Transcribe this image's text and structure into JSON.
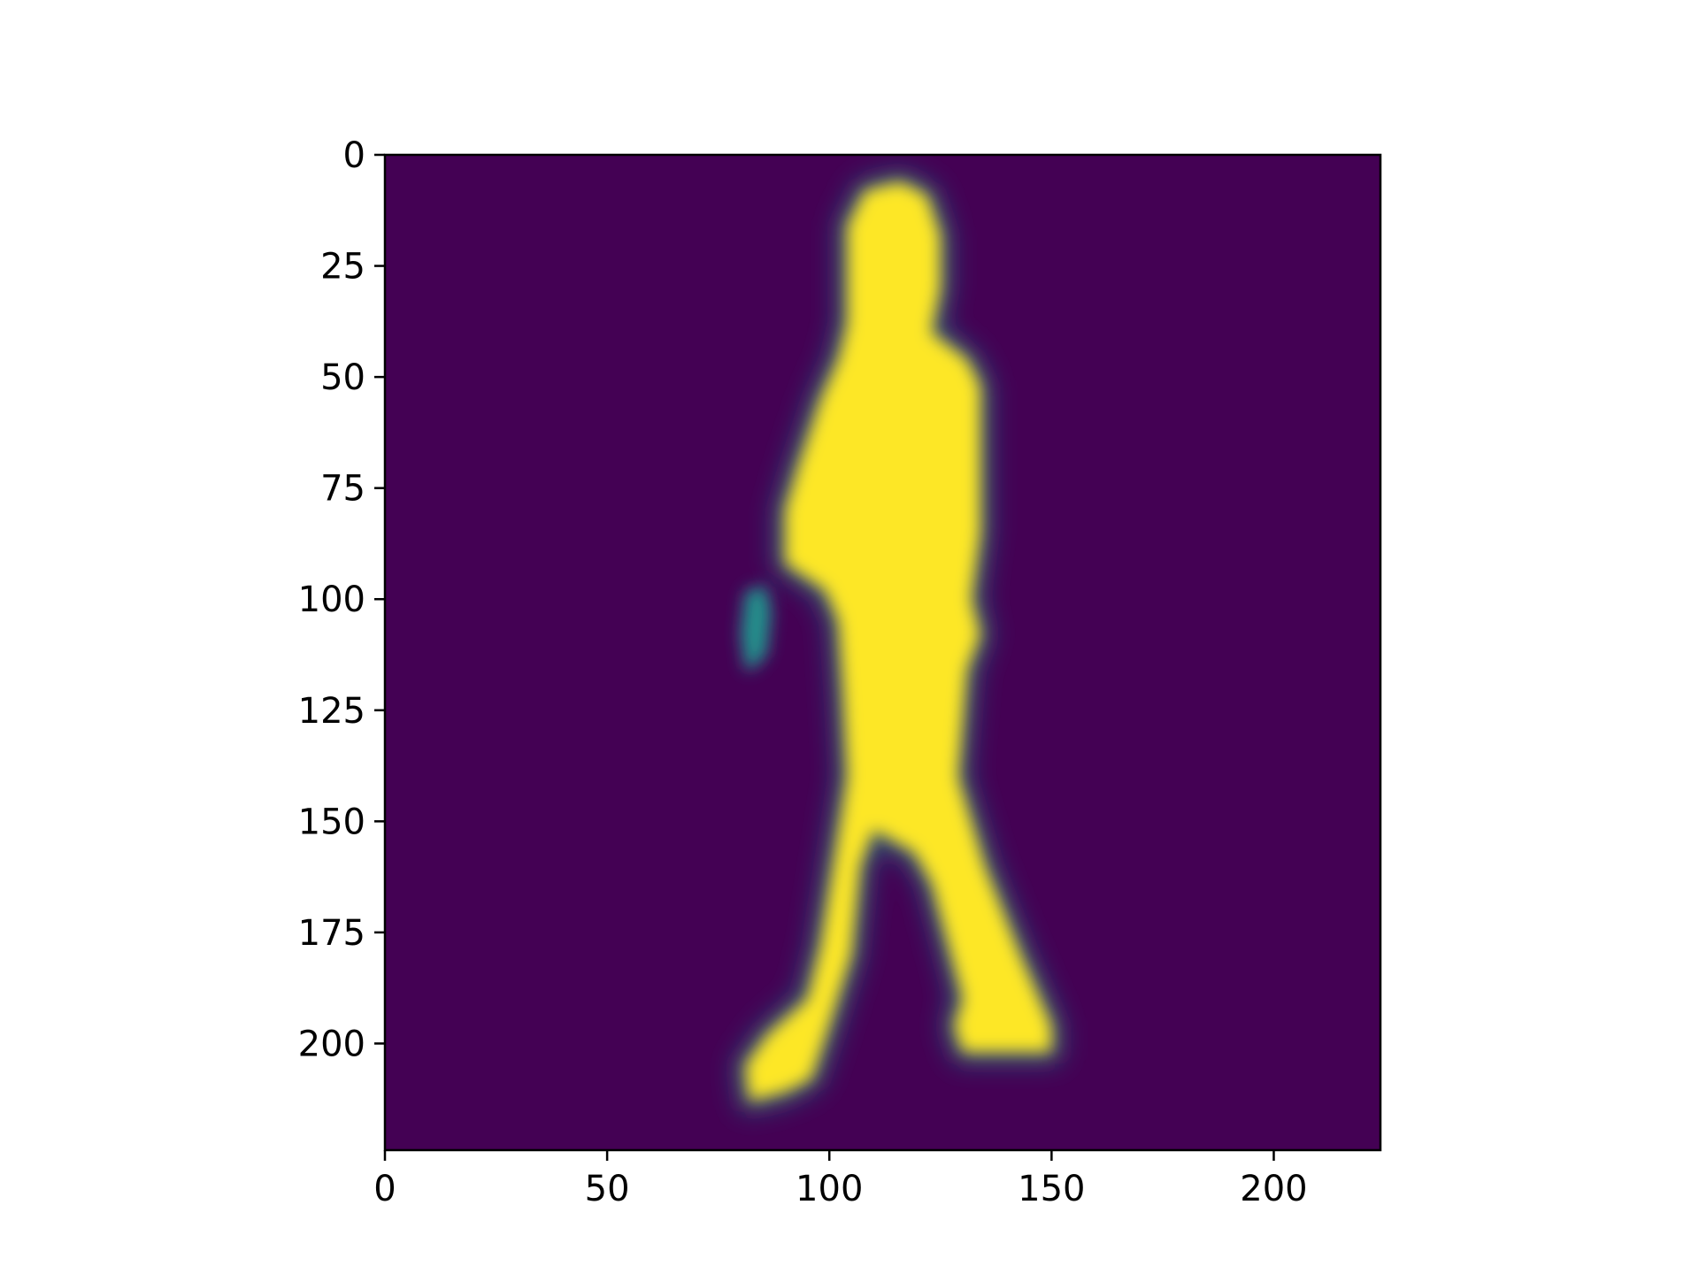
{
  "chart_data": {
    "type": "heatmap",
    "title": "",
    "xlabel": "",
    "ylabel": "",
    "colormap": "viridis",
    "colors": {
      "low": "#440154",
      "mid": "#21918c",
      "high": "#fde725"
    },
    "xlim": [
      0,
      224
    ],
    "ylim": [
      224,
      0
    ],
    "xticks": [
      0,
      50,
      100,
      150,
      200
    ],
    "yticks": [
      0,
      25,
      50,
      75,
      100,
      125,
      150,
      175,
      200
    ],
    "xtick_labels": [
      "0",
      "50",
      "100",
      "150",
      "200"
    ],
    "ytick_labels": [
      "0",
      "25",
      "50",
      "75",
      "100",
      "125",
      "150",
      "175",
      "200"
    ],
    "grid": false,
    "description_values": "Segmentation mask heatmap: values near 1 (yellow) form a walking person silhouette, background near 0 (purple)."
  },
  "silhouette": {
    "main_body": [
      [
        108,
        8
      ],
      [
        116,
        6
      ],
      [
        122,
        9
      ],
      [
        125,
        18
      ],
      [
        125,
        30
      ],
      [
        123,
        40
      ],
      [
        131,
        46
      ],
      [
        134,
        52
      ],
      [
        134,
        85
      ],
      [
        132,
        100
      ],
      [
        134,
        108
      ],
      [
        131,
        116
      ],
      [
        129,
        140
      ],
      [
        135,
        160
      ],
      [
        143,
        180
      ],
      [
        150,
        196
      ],
      [
        150,
        202
      ],
      [
        130,
        202
      ],
      [
        128,
        196
      ],
      [
        130,
        190
      ],
      [
        123,
        164
      ],
      [
        119,
        157
      ],
      [
        110,
        152
      ],
      [
        107,
        160
      ],
      [
        105,
        180
      ],
      [
        100,
        196
      ],
      [
        96,
        208
      ],
      [
        90,
        211
      ],
      [
        82,
        213
      ],
      [
        81,
        205
      ],
      [
        86,
        198
      ],
      [
        95,
        190
      ],
      [
        98,
        178
      ],
      [
        104,
        140
      ],
      [
        103,
        120
      ],
      [
        102,
        105
      ],
      [
        99,
        98
      ],
      [
        90,
        92
      ],
      [
        90,
        80
      ],
      [
        93,
        70
      ],
      [
        98,
        55
      ],
      [
        102,
        46
      ],
      [
        104,
        38
      ],
      [
        104,
        28
      ],
      [
        104,
        16
      ]
    ],
    "hand": [
      [
        82,
        99
      ],
      [
        85,
        98
      ],
      [
        86,
        103
      ],
      [
        85,
        112
      ],
      [
        82,
        115
      ],
      [
        81,
        108
      ]
    ],
    "mid_value": 0.5
  }
}
